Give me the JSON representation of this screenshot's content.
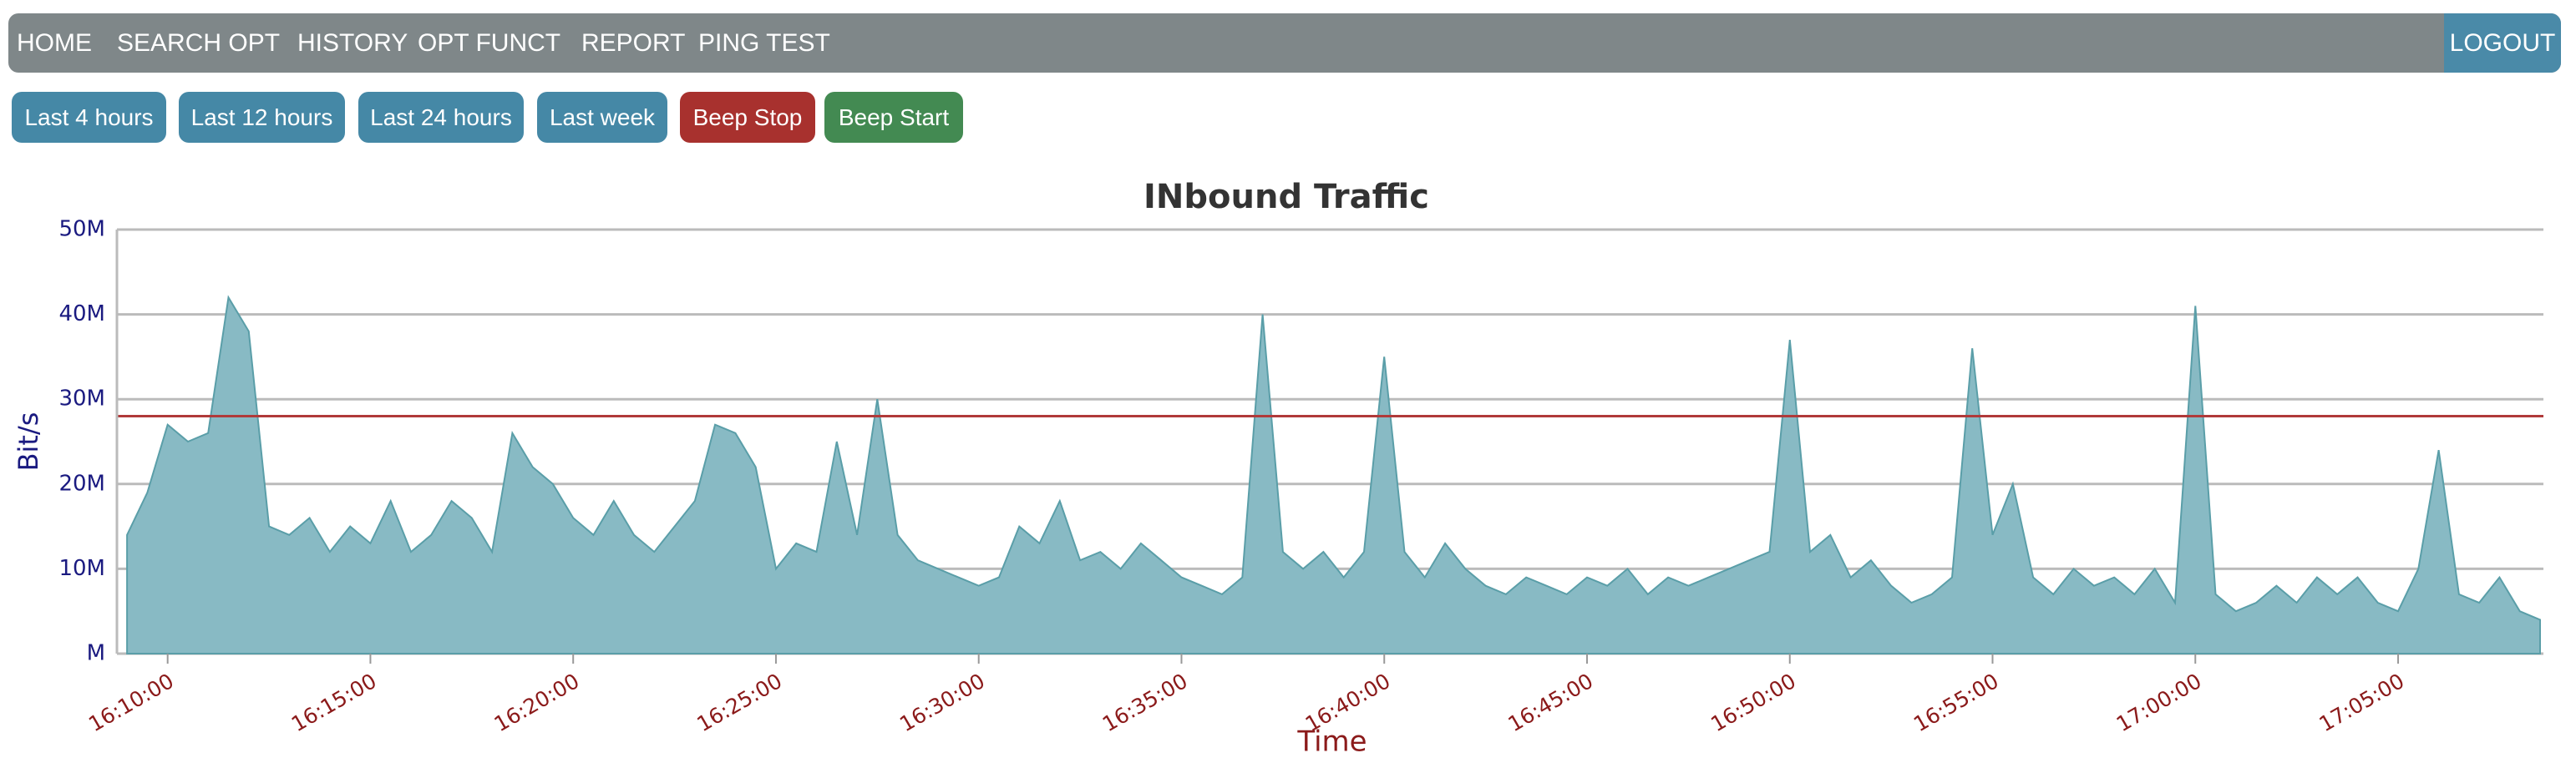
{
  "nav": {
    "items": [
      "HOME",
      "SEARCH OPT",
      "HISTORY",
      "OPT FUNCT",
      "REPORT",
      "PING TEST"
    ],
    "logout": "LOGOUT"
  },
  "buttons": [
    {
      "label": "Last 4 hours",
      "color": "#4588a6"
    },
    {
      "label": "Last 12 hours",
      "color": "#4588a6"
    },
    {
      "label": "Last 24 hours",
      "color": "#4588a6"
    },
    {
      "label": "Last week",
      "color": "#4588a6"
    },
    {
      "label": "Beep Stop",
      "color": "#a8312e"
    },
    {
      "label": "Beep Start",
      "color": "#438a52"
    }
  ],
  "chart_data": {
    "type": "area",
    "title": "INbound Traffic",
    "x_label": "Time",
    "y_label": "Bit/s",
    "color": "#88bac4",
    "line_color": "#5a9ea8",
    "threshold": {
      "value": 28000000,
      "color": "#b03a3a"
    },
    "xlim": [
      "16:08:45",
      "17:08:35"
    ],
    "xticks": [
      "16:10:00",
      "16:15:00",
      "16:20:00",
      "16:25:00",
      "16:30:00",
      "16:35:00",
      "16:40:00",
      "16:45:00",
      "16:50:00",
      "16:55:00",
      "17:00:00",
      "17:05:00"
    ],
    "ylim": [
      0,
      50000000
    ],
    "yticks": [
      {
        "value": 0,
        "label": "M"
      },
      {
        "value": 10000000,
        "label": "10M"
      },
      {
        "value": 20000000,
        "label": "20M"
      },
      {
        "value": 30000000,
        "label": "30M"
      },
      {
        "value": 40000000,
        "label": "40M"
      },
      {
        "value": 50000000,
        "label": "50M"
      }
    ],
    "grid": true,
    "x": [
      "16:09:00",
      "16:09:30",
      "16:10:00",
      "16:10:30",
      "16:11:00",
      "16:11:30",
      "16:12:00",
      "16:12:30",
      "16:13:00",
      "16:13:30",
      "16:14:00",
      "16:14:30",
      "16:15:00",
      "16:15:30",
      "16:16:00",
      "16:16:30",
      "16:17:00",
      "16:17:30",
      "16:18:00",
      "16:18:30",
      "16:19:00",
      "16:19:30",
      "16:20:00",
      "16:20:30",
      "16:21:00",
      "16:21:30",
      "16:22:00",
      "16:22:30",
      "16:23:00",
      "16:23:30",
      "16:24:00",
      "16:24:30",
      "16:25:00",
      "16:25:30",
      "16:26:00",
      "16:26:30",
      "16:27:00",
      "16:27:30",
      "16:28:00",
      "16:28:30",
      "16:29:00",
      "16:29:30",
      "16:30:00",
      "16:30:30",
      "16:31:00",
      "16:31:30",
      "16:32:00",
      "16:32:30",
      "16:33:00",
      "16:33:30",
      "16:34:00",
      "16:34:30",
      "16:35:00",
      "16:35:30",
      "16:36:00",
      "16:36:30",
      "16:37:00",
      "16:37:30",
      "16:38:00",
      "16:38:30",
      "16:39:00",
      "16:39:30",
      "16:40:00",
      "16:40:30",
      "16:41:00",
      "16:41:30",
      "16:42:00",
      "16:42:30",
      "16:43:00",
      "16:43:30",
      "16:44:00",
      "16:44:30",
      "16:45:00",
      "16:45:30",
      "16:46:00",
      "16:46:30",
      "16:47:00",
      "16:47:30",
      "16:48:00",
      "16:48:30",
      "16:49:00",
      "16:49:30",
      "16:50:00",
      "16:50:30",
      "16:51:00",
      "16:51:30",
      "16:52:00",
      "16:52:30",
      "16:53:00",
      "16:53:30",
      "16:54:00",
      "16:54:30",
      "16:55:00",
      "16:55:30",
      "16:56:00",
      "16:56:30",
      "16:57:00",
      "16:57:30",
      "16:58:00",
      "16:58:30",
      "16:59:00",
      "16:59:30",
      "17:00:00",
      "17:00:30",
      "17:01:00",
      "17:01:30",
      "17:02:00",
      "17:02:30",
      "17:03:00",
      "17:03:30",
      "17:04:00",
      "17:04:30",
      "17:05:00",
      "17:05:30",
      "17:06:00",
      "17:06:30",
      "17:07:00",
      "17:07:30",
      "17:08:00",
      "17:08:30"
    ],
    "values": [
      14000000,
      19000000,
      27000000,
      25000000,
      26000000,
      42000000,
      38000000,
      15000000,
      14000000,
      16000000,
      12000000,
      15000000,
      13000000,
      18000000,
      12000000,
      14000000,
      18000000,
      16000000,
      12000000,
      26000000,
      22000000,
      20000000,
      16000000,
      14000000,
      18000000,
      14000000,
      12000000,
      15000000,
      18000000,
      27000000,
      26000000,
      22000000,
      10000000,
      13000000,
      12000000,
      25000000,
      14000000,
      30000000,
      14000000,
      11000000,
      10000000,
      9000000,
      8000000,
      9000000,
      15000000,
      13000000,
      18000000,
      11000000,
      12000000,
      10000000,
      13000000,
      11000000,
      9000000,
      8000000,
      7000000,
      9000000,
      40000000,
      12000000,
      10000000,
      12000000,
      9000000,
      12000000,
      35000000,
      12000000,
      9000000,
      13000000,
      10000000,
      8000000,
      7000000,
      9000000,
      8000000,
      7000000,
      9000000,
      8000000,
      10000000,
      7000000,
      9000000,
      8000000,
      9000000,
      10000000,
      11000000,
      12000000,
      37000000,
      12000000,
      14000000,
      9000000,
      11000000,
      8000000,
      6000000,
      7000000,
      9000000,
      36000000,
      14000000,
      20000000,
      9000000,
      7000000,
      10000000,
      8000000,
      9000000,
      7000000,
      10000000,
      6000000,
      41000000,
      7000000,
      5000000,
      6000000,
      8000000,
      6000000,
      9000000,
      7000000,
      9000000,
      6000000,
      5000000,
      10000000,
      24000000,
      7000000,
      6000000,
      9000000,
      5000000,
      4000000
    ]
  }
}
